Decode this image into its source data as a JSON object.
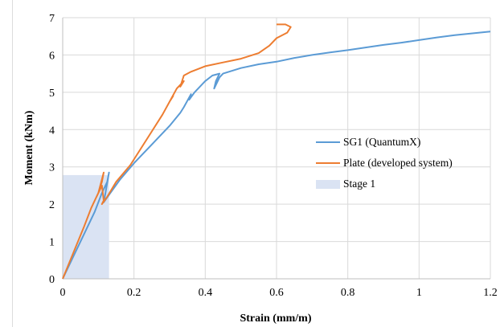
{
  "chart_data": {
    "type": "line",
    "xlabel": "Strain (mm/m)",
    "ylabel": "Moment (kNm)",
    "xlim": [
      0,
      1.2
    ],
    "ylim": [
      0,
      7
    ],
    "x_ticks": [
      "0",
      "0.2",
      "0.4",
      "0.6",
      "0.8",
      "1",
      "1.2"
    ],
    "y_ticks": [
      "0",
      "1",
      "2",
      "3",
      "4",
      "5",
      "6",
      "7"
    ],
    "grid": true,
    "legend_position": "center-right",
    "stage_region": {
      "name": "Stage 1",
      "x": [
        0,
        0.13
      ],
      "y": [
        0,
        2.78
      ],
      "color": "#dae3f3"
    },
    "series": [
      {
        "name": "SG1 (QuantumX)",
        "color": "#5b9bd5",
        "points": [
          [
            0,
            0
          ],
          [
            0.03,
            0.6
          ],
          [
            0.06,
            1.2
          ],
          [
            0.09,
            1.8
          ],
          [
            0.11,
            2.3
          ],
          [
            0.125,
            2.6
          ],
          [
            0.13,
            2.85
          ],
          [
            0.12,
            2.3
          ],
          [
            0.115,
            2.05
          ],
          [
            0.13,
            2.25
          ],
          [
            0.16,
            2.65
          ],
          [
            0.2,
            3.1
          ],
          [
            0.25,
            3.6
          ],
          [
            0.3,
            4.1
          ],
          [
            0.33,
            4.45
          ],
          [
            0.34,
            4.6
          ],
          [
            0.33,
            4.45
          ],
          [
            0.34,
            4.6
          ],
          [
            0.36,
            4.95
          ],
          [
            0.355,
            4.8
          ],
          [
            0.37,
            5.0
          ],
          [
            0.4,
            5.3
          ],
          [
            0.42,
            5.45
          ],
          [
            0.44,
            5.5
          ],
          [
            0.43,
            5.3
          ],
          [
            0.425,
            5.1
          ],
          [
            0.44,
            5.4
          ],
          [
            0.45,
            5.5
          ],
          [
            0.5,
            5.65
          ],
          [
            0.55,
            5.75
          ],
          [
            0.6,
            5.82
          ],
          [
            0.65,
            5.92
          ],
          [
            0.7,
            6.0
          ],
          [
            0.75,
            6.07
          ],
          [
            0.8,
            6.13
          ],
          [
            0.85,
            6.2
          ],
          [
            0.9,
            6.27
          ],
          [
            0.95,
            6.33
          ],
          [
            1.0,
            6.4
          ],
          [
            1.05,
            6.47
          ],
          [
            1.1,
            6.53
          ],
          [
            1.15,
            6.58
          ],
          [
            1.2,
            6.63
          ]
        ]
      },
      {
        "name": "Plate (developed system)",
        "color": "#ed7d31",
        "points": [
          [
            0,
            0
          ],
          [
            0.03,
            0.7
          ],
          [
            0.06,
            1.4
          ],
          [
            0.08,
            1.9
          ],
          [
            0.1,
            2.3
          ],
          [
            0.11,
            2.6
          ],
          [
            0.115,
            2.85
          ],
          [
            0.1,
            2.3
          ],
          [
            0.095,
            2.2
          ],
          [
            0.11,
            2.5
          ],
          [
            0.115,
            2.1
          ],
          [
            0.11,
            2.0
          ],
          [
            0.125,
            2.2
          ],
          [
            0.15,
            2.6
          ],
          [
            0.19,
            3.05
          ],
          [
            0.22,
            3.5
          ],
          [
            0.25,
            3.95
          ],
          [
            0.28,
            4.4
          ],
          [
            0.3,
            4.75
          ],
          [
            0.31,
            4.9
          ],
          [
            0.3,
            4.75
          ],
          [
            0.32,
            5.1
          ],
          [
            0.34,
            5.3
          ],
          [
            0.33,
            5.15
          ],
          [
            0.335,
            5.3
          ],
          [
            0.34,
            5.45
          ],
          [
            0.36,
            5.55
          ],
          [
            0.4,
            5.7
          ],
          [
            0.45,
            5.8
          ],
          [
            0.5,
            5.9
          ],
          [
            0.55,
            6.05
          ],
          [
            0.58,
            6.25
          ],
          [
            0.6,
            6.45
          ],
          [
            0.63,
            6.6
          ],
          [
            0.64,
            6.75
          ],
          [
            0.625,
            6.82
          ],
          [
            0.6,
            6.82
          ]
        ]
      }
    ]
  }
}
